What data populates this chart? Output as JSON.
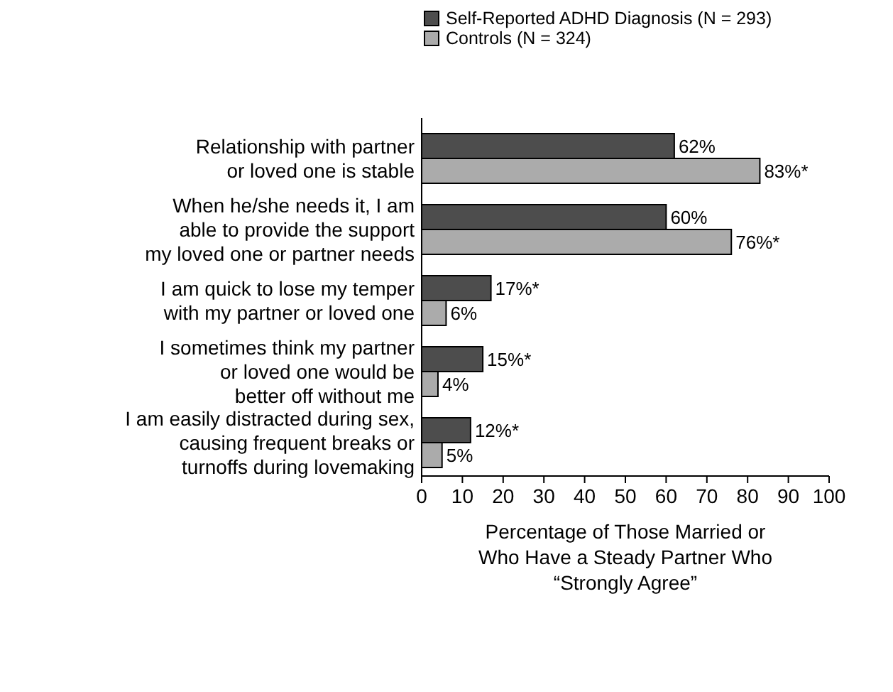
{
  "chart_data": {
    "type": "bar",
    "orientation": "horizontal",
    "categories": [
      "Relationship with partner\nor loved one is stable",
      "When he/she needs it, I am\nable to provide the support\nmy loved one or partner needs",
      "I am quick to lose my temper\nwith my partner or loved one",
      "I sometimes think my partner\nor loved one would be\nbetter off without me",
      "I am easily distracted during sex,\ncausing frequent breaks or\nturnoffs during lovemaking"
    ],
    "series": [
      {
        "name": "Self-Reported ADHD Diagnosis (N = 293)",
        "color": "#4d4d4d",
        "values": [
          62,
          60,
          17,
          15,
          12
        ],
        "value_labels": [
          "62%",
          "60%",
          "17%*",
          "15%*",
          "12%*"
        ]
      },
      {
        "name": "Controls (N = 324)",
        "color": "#ababab",
        "values": [
          83,
          76,
          6,
          4,
          5
        ],
        "value_labels": [
          "83%*",
          "76%*",
          "6%",
          "4%",
          "5%"
        ]
      }
    ],
    "xlim": [
      0,
      100
    ],
    "xticks": [
      0,
      10,
      20,
      30,
      40,
      50,
      60,
      70,
      80,
      90,
      100
    ],
    "xlabel": "Percentage of Those Married or\nWho Have a Steady Partner Who\n“Strongly Agree”",
    "legend": "top",
    "grid": false
  }
}
